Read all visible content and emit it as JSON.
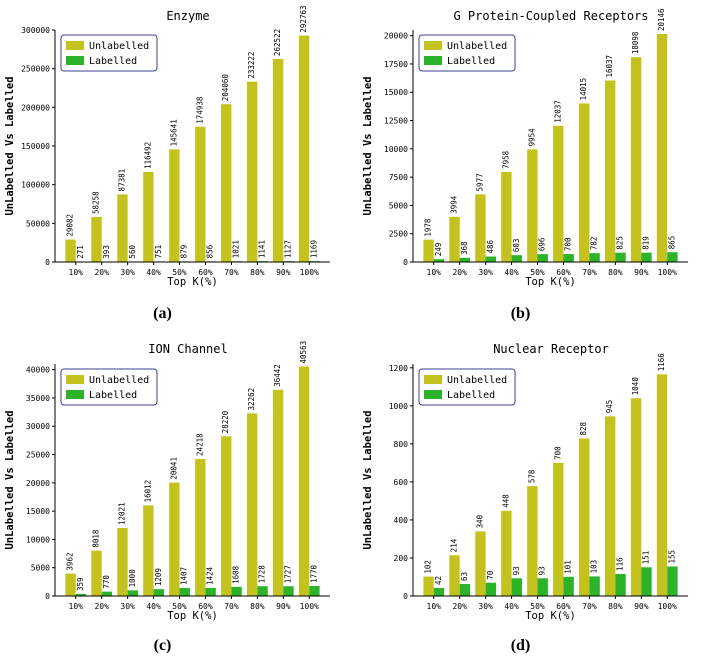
{
  "colors": {
    "unlabelled": "#c4c21f",
    "labelled": "#2db32a",
    "legend_border": "#3b3f8f",
    "axis": "#000000"
  },
  "chart_data": [
    {
      "type": "bar",
      "panel_label": "(a)",
      "title": "Enzyme",
      "xlabel": "Top K(%)",
      "ylabel": "UnLabelled Vs Labelled",
      "categories": [
        "10%",
        "20%",
        "30%",
        "40%",
        "50%",
        "60%",
        "70%",
        "80%",
        "90%",
        "100%"
      ],
      "ylim": [
        0,
        300000
      ],
      "yticks": [
        0,
        50000,
        100000,
        150000,
        200000,
        250000,
        300000
      ],
      "ytick_labels": [
        "0",
        "50000",
        "100000",
        "150000",
        "200000",
        "250000",
        "300000"
      ],
      "legend_position": "top-left",
      "series": [
        {
          "name": "Unlabelled",
          "values": [
            29082,
            58258,
            87381,
            116492,
            145641,
            174938,
            204060,
            233222,
            262522,
            292763
          ],
          "labels": [
            "29082",
            "58258",
            "87381",
            "116492",
            "145641",
            "174938",
            "204060",
            "233222",
            "262522",
            "292763"
          ]
        },
        {
          "name": "Labelled",
          "values": [
            271,
            393,
            560,
            751,
            879,
            856,
            1021,
            1141,
            1127,
            1169
          ],
          "labels": [
            "271",
            "393",
            "560",
            "751",
            "879",
            "856",
            "1021",
            "1141",
            "1127",
            "1169"
          ]
        }
      ]
    },
    {
      "type": "bar",
      "panel_label": "(b)",
      "title": "G Protein-Coupled Receptors",
      "xlabel": "Top K(%)",
      "ylabel": "UnLabelled Vs Labelled",
      "categories": [
        "10%",
        "20%",
        "30%",
        "40%",
        "50%",
        "60%",
        "70%",
        "80%",
        "90%",
        "100%"
      ],
      "ylim": [
        0,
        20500
      ],
      "yticks": [
        0,
        2500,
        5000,
        7500,
        10000,
        12500,
        15000,
        17500,
        20000
      ],
      "ytick_labels": [
        "0",
        "2500",
        "5000",
        "7500",
        "10000",
        "12500",
        "15000",
        "17500",
        "20000"
      ],
      "legend_position": "top-left",
      "series": [
        {
          "name": "Unlabelled",
          "values": [
            1978,
            3994,
            5977,
            7958,
            9954,
            12037,
            14015,
            16037,
            18098,
            20146
          ],
          "labels": [
            "1978",
            "3994",
            "5977",
            "7958",
            "9954",
            "12037",
            "14015",
            "16037",
            "18098",
            "20146"
          ]
        },
        {
          "name": "Labelled",
          "values": [
            249,
            368,
            486,
            603,
            696,
            700,
            782,
            825,
            819,
            865
          ],
          "labels": [
            "249",
            "368",
            "486",
            "603",
            "696",
            "700",
            "782",
            "825",
            "819",
            "865"
          ]
        }
      ]
    },
    {
      "type": "bar",
      "panel_label": "(c)",
      "title": "ION Channel",
      "xlabel": "Top K(%)",
      "ylabel": "UnLabelled Vs Labelled",
      "categories": [
        "10%",
        "20%",
        "30%",
        "40%",
        "50%",
        "60%",
        "70%",
        "80%",
        "90%",
        "100%"
      ],
      "ylim": [
        0,
        41000
      ],
      "yticks": [
        0,
        5000,
        10000,
        15000,
        20000,
        25000,
        30000,
        35000,
        40000
      ],
      "ytick_labels": [
        "0",
        "5000",
        "10000",
        "15000",
        "20000",
        "25000",
        "30000",
        "35000",
        "40000"
      ],
      "legend_position": "top-left",
      "series": [
        {
          "name": "Unlabelled",
          "values": [
            3962,
            8018,
            12021,
            16012,
            20041,
            24218,
            28220,
            32262,
            36442,
            40563
          ],
          "labels": [
            "3962",
            "8018",
            "12021",
            "16012",
            "20041",
            "24218",
            "28220",
            "32262",
            "36442",
            "40563"
          ]
        },
        {
          "name": "Labelled",
          "values": [
            359,
            770,
            1000,
            1209,
            1407,
            1424,
            1608,
            1728,
            1727,
            1770
          ],
          "labels": [
            "359",
            "770",
            "1000",
            "1209",
            "1407",
            "1424",
            "1608",
            "1728",
            "1727",
            "1770"
          ]
        }
      ]
    },
    {
      "type": "bar",
      "panel_label": "(d)",
      "title": "Nuclear Receptor",
      "xlabel": "Top K(%)",
      "ylabel": "UnLabelled Vs Labelled",
      "categories": [
        "10%",
        "20%",
        "30%",
        "40%",
        "50%",
        "60%",
        "70%",
        "80%",
        "90%",
        "100%"
      ],
      "ylim": [
        0,
        1220
      ],
      "yticks": [
        0,
        200,
        400,
        600,
        800,
        1000,
        1200
      ],
      "ytick_labels": [
        "0",
        "200",
        "400",
        "600",
        "800",
        "1000",
        "1200"
      ],
      "legend_position": "top-left",
      "series": [
        {
          "name": "Unlabelled",
          "values": [
            102,
            214,
            340,
            448,
            578,
            700,
            828,
            945,
            1040,
            1166
          ],
          "labels": [
            "102",
            "214",
            "340",
            "448",
            "578",
            "700",
            "828",
            "945",
            "1040",
            "1166"
          ]
        },
        {
          "name": "Labelled",
          "values": [
            42,
            63,
            70,
            93,
            93,
            101,
            103,
            116,
            151,
            155
          ],
          "labels": [
            "42",
            "63",
            "70",
            "93",
            "93",
            "101",
            "103",
            "116",
            "151",
            "155"
          ]
        }
      ]
    }
  ]
}
